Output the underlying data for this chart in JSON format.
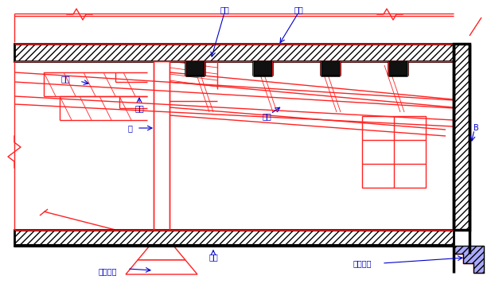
{
  "bg_color": "#ffffff",
  "rc": "#ff2222",
  "bc": "#000000",
  "bl": "#0000cc",
  "labels": {
    "zhu_liang_top": "主梁",
    "lou_ban": "楼板",
    "ci_liang_left": "次梁",
    "zhu_liang_left": "主梁",
    "zhu": "柱",
    "ci_liang_right": "次梁",
    "du_li_jichu": "独立基础",
    "di_mian": "地面",
    "tiao_xing_jichu": "条形基础",
    "B_label": "B"
  },
  "figsize": [
    6.17,
    3.81
  ],
  "dpi": 100
}
